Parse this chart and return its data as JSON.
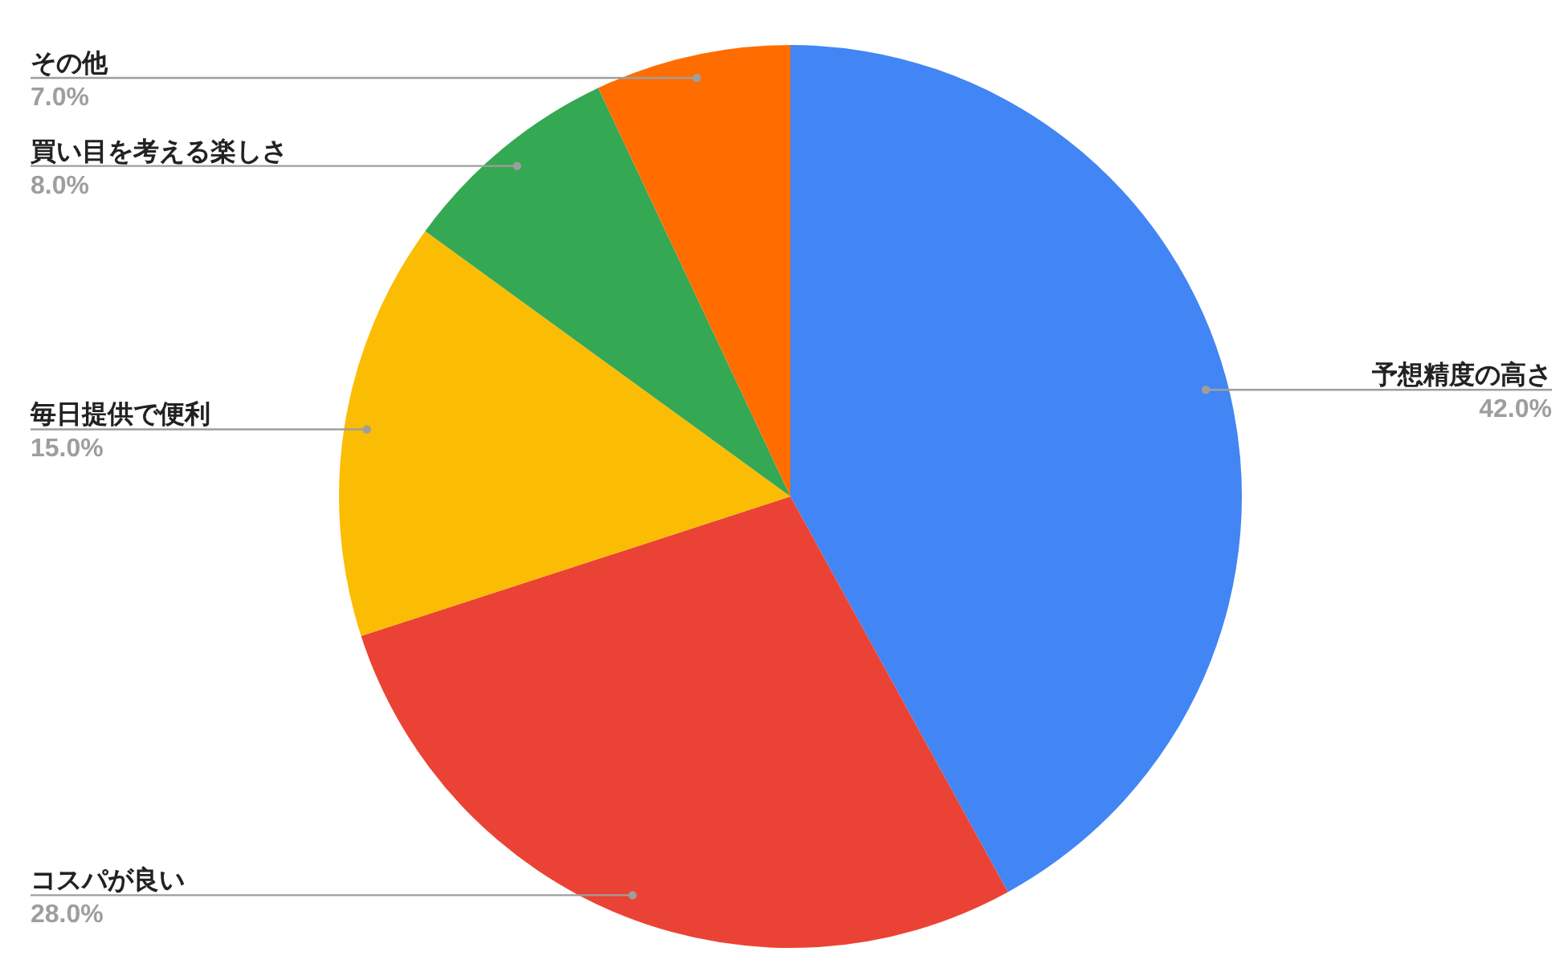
{
  "chart_data": {
    "type": "pie",
    "categories": [
      "予想精度の高さ",
      "コスパが良い",
      "毎日提供で便利",
      "買い目を考える楽しさ",
      "その他"
    ],
    "values": [
      42,
      28,
      15,
      8,
      7
    ],
    "colors": [
      "#4285f4",
      "#ea4335",
      "#fbbc04",
      "#34a853",
      "#ff6d01"
    ],
    "value_labels": [
      "42.0%",
      "28.0%",
      "15.0%",
      "8.0%",
      "7.0%"
    ]
  }
}
